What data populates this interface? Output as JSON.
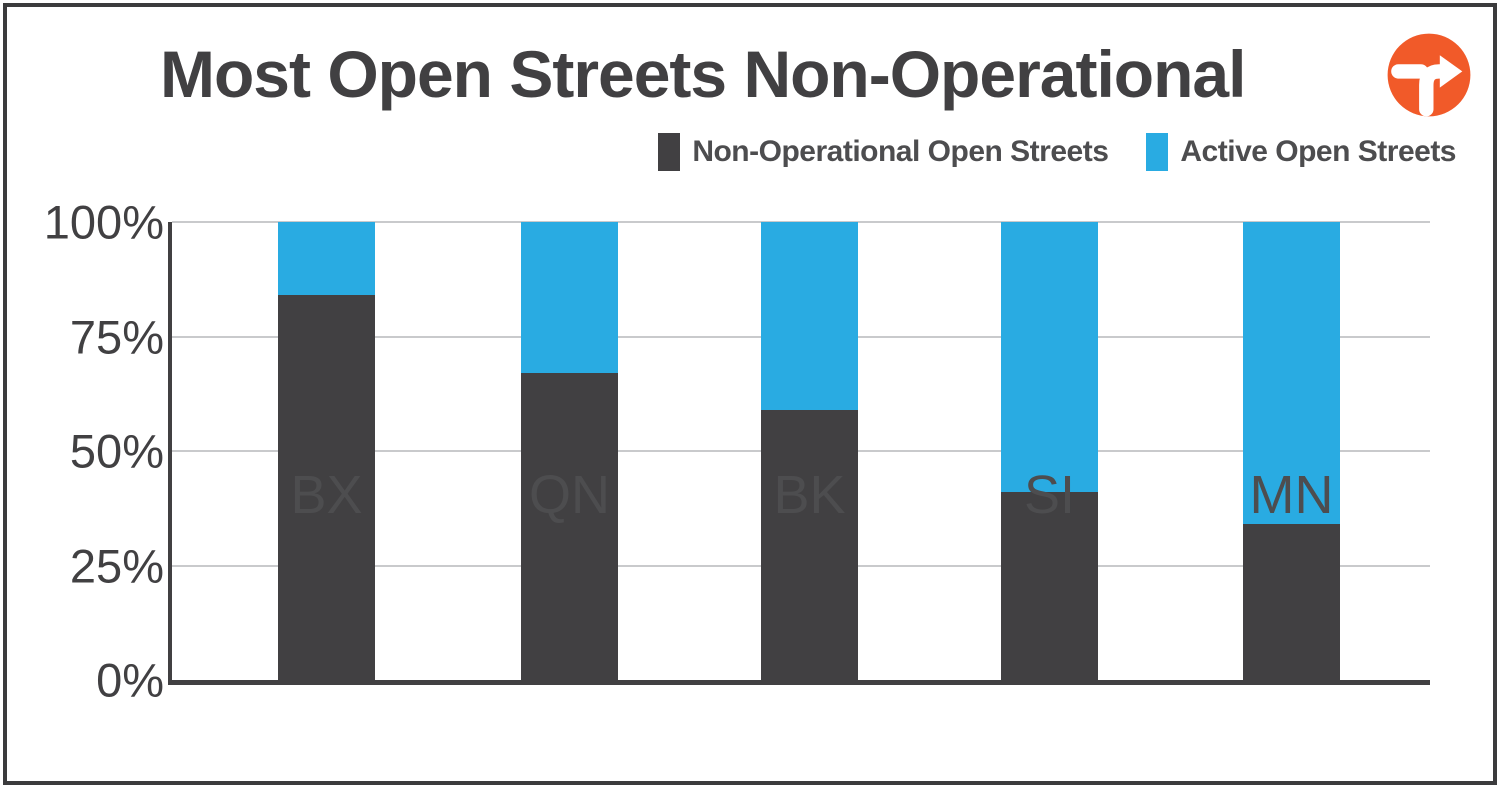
{
  "title": "Most Open Streets Non-Operational",
  "logo": {
    "name": "transportation-alternatives-logo",
    "circle_color": "#F15A29",
    "glyph_color": "#FFFFFF"
  },
  "legend": {
    "items": [
      {
        "label": "Non-Operational Open Streets",
        "color": "#414042"
      },
      {
        "label": "Active Open Streets",
        "color": "#29ABE2"
      }
    ]
  },
  "chart_data": {
    "type": "bar",
    "stacked": true,
    "title": "Most Open Streets Non-Operational",
    "categories": [
      "BX",
      "QN",
      "BK",
      "SI",
      "MN"
    ],
    "series": [
      {
        "name": "Non-Operational Open Streets",
        "color": "#414042",
        "values": [
          84,
          67,
          59,
          41,
          34
        ]
      },
      {
        "name": "Active Open Streets",
        "color": "#29ABE2",
        "values": [
          16,
          33,
          41,
          59,
          66
        ]
      }
    ],
    "value_unit": "percent",
    "xlabel": "",
    "ylabel": "",
    "y_ticks": [
      "0%",
      "25%",
      "50%",
      "75%",
      "100%"
    ],
    "ylim": [
      0,
      100
    ],
    "grid": true,
    "gridline_color": "#c9cacc",
    "axis_color": "#414042",
    "legend_position": "top-right"
  }
}
